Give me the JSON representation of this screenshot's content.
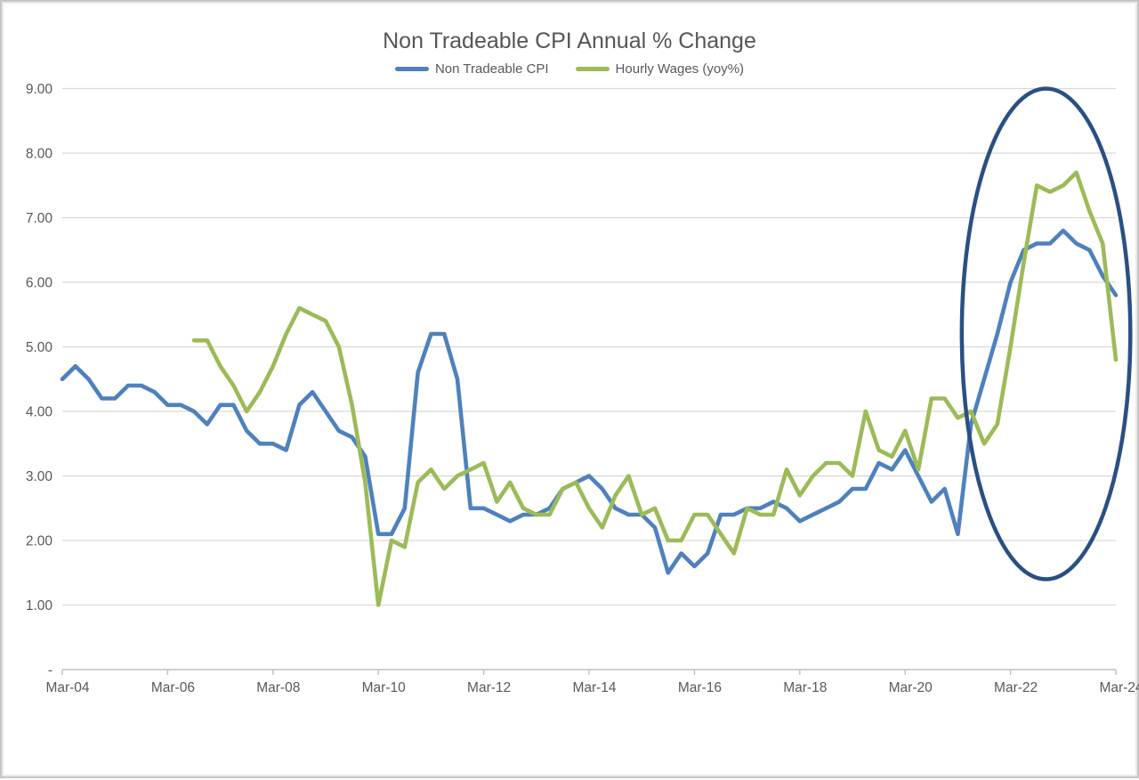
{
  "chart_data": {
    "type": "line",
    "title": "Non Tradeable CPI Annual % Change",
    "frequency": "quarterly",
    "x_tick_labels": [
      "Mar-04",
      "Mar-06",
      "Mar-08",
      "Mar-10",
      "Mar-12",
      "Mar-14",
      "Mar-16",
      "Mar-18",
      "Mar-20",
      "Mar-22",
      "Mar-24"
    ],
    "points_per_x_tick": 8,
    "y_tick_labels": [
      "-",
      "1.00",
      "2.00",
      "3.00",
      "4.00",
      "5.00",
      "6.00",
      "7.00",
      "8.00",
      "9.00"
    ],
    "ylim": [
      0,
      9
    ],
    "grid": true,
    "legend_position": "top",
    "background_color": "#FFFFFF",
    "gridline_color": "#D9D9D9",
    "axis_color": "#BFBFBF",
    "text_color": "#595959",
    "series": [
      {
        "name": "Non Tradeable CPI",
        "color": "#4E81BD",
        "values": [
          4.5,
          4.7,
          4.5,
          4.2,
          4.2,
          4.4,
          4.4,
          4.3,
          4.1,
          4.1,
          4.0,
          3.8,
          4.1,
          4.1,
          3.7,
          3.5,
          3.5,
          3.4,
          4.1,
          4.3,
          4.0,
          3.7,
          3.6,
          3.3,
          2.1,
          2.1,
          2.5,
          4.6,
          5.2,
          5.2,
          4.5,
          2.5,
          2.5,
          2.4,
          2.3,
          2.4,
          2.4,
          2.5,
          2.8,
          2.9,
          3.0,
          2.8,
          2.5,
          2.4,
          2.4,
          2.2,
          1.5,
          1.8,
          1.6,
          1.8,
          2.4,
          2.4,
          2.5,
          2.5,
          2.6,
          2.5,
          2.3,
          2.4,
          2.5,
          2.6,
          2.8,
          2.8,
          3.2,
          3.1,
          3.4,
          3.0,
          2.6,
          2.8,
          2.1,
          3.8,
          4.5,
          5.2,
          6.0,
          6.5,
          6.6,
          6.6,
          6.8,
          6.6,
          6.5,
          6.1,
          5.8
        ]
      },
      {
        "name": "Hourly Wages (yoy%)",
        "color": "#9CBB58",
        "values": [
          null,
          null,
          null,
          null,
          null,
          null,
          null,
          null,
          null,
          null,
          5.1,
          5.1,
          4.7,
          4.4,
          4.0,
          4.3,
          4.7,
          5.2,
          5.6,
          5.5,
          5.4,
          5.0,
          4.1,
          2.9,
          1.0,
          2.0,
          1.9,
          2.9,
          3.1,
          2.8,
          3.0,
          3.1,
          3.2,
          2.6,
          2.9,
          2.5,
          2.4,
          2.4,
          2.8,
          2.9,
          2.5,
          2.2,
          2.7,
          3.0,
          2.4,
          2.5,
          2.0,
          2.0,
          2.4,
          2.4,
          2.1,
          1.8,
          2.5,
          2.4,
          2.4,
          3.1,
          2.7,
          3.0,
          3.2,
          3.2,
          3.0,
          4.0,
          3.4,
          3.3,
          3.7,
          3.1,
          4.2,
          4.2,
          3.9,
          4.0,
          3.5,
          3.8,
          5.0,
          6.3,
          7.5,
          7.4,
          7.5,
          7.7,
          7.1,
          6.6,
          4.8
        ]
      }
    ],
    "annotation": {
      "shape": "ellipse",
      "purpose": "highlights 2021-2024 inflation/wage spike",
      "color": "#2A5083",
      "cx_index": 74.7,
      "cy_value": 5.2,
      "rx_quarters": 6.4,
      "ry_units": 3.8
    }
  }
}
